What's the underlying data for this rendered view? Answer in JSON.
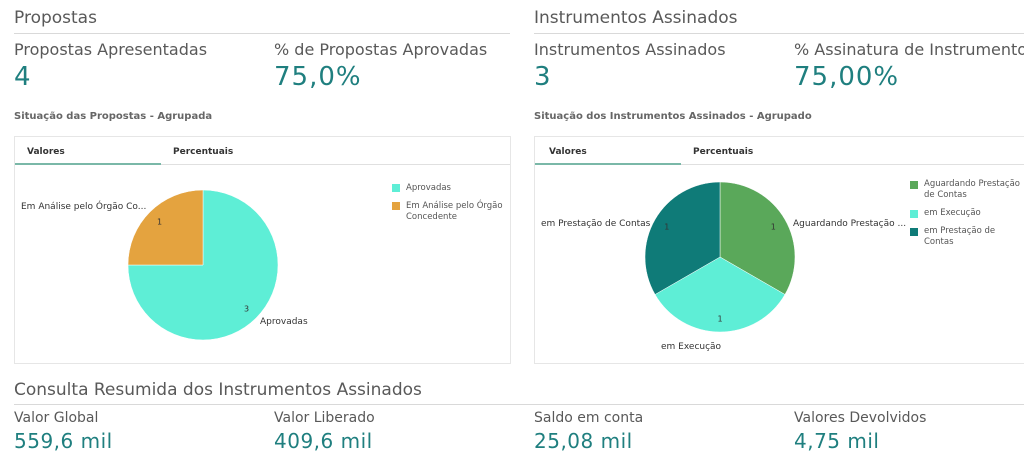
{
  "propostas": {
    "title": "Propostas",
    "kpis": [
      {
        "label": "Propostas Apresentadas",
        "value": "4"
      },
      {
        "label": "% de Propostas Aprovadas",
        "value": "75,0%"
      }
    ],
    "chart_title": "Situação das Propostas - Agrupada",
    "tabs": [
      "Valores",
      "Percentuais"
    ],
    "legend": [
      {
        "label": "Aprovadas",
        "color": "#5eeed6"
      },
      {
        "label": "Em Análise pelo Órgão Concedente",
        "color": "#e4a33f"
      }
    ],
    "slice_labels": {
      "aprovadas": "Aprovadas",
      "analise": "Em Análise pelo Órgão Co..."
    }
  },
  "instrumentos": {
    "title": "Instrumentos Assinados",
    "kpis": [
      {
        "label": "Instrumentos Assinados",
        "value": "3"
      },
      {
        "label": "% Assinatura de Instrumentos",
        "value": "75,00%"
      }
    ],
    "chart_title": "Situação dos Instrumentos Assinados - Agrupado",
    "tabs": [
      "Valores",
      "Percentuais"
    ],
    "legend": [
      {
        "label": "Aguardando Prestação de Contas",
        "color": "#5aa85a"
      },
      {
        "label": "em Execução",
        "color": "#5eeed6"
      },
      {
        "label": "em Prestação de Contas",
        "color": "#0f7b78"
      }
    ],
    "slice_labels": {
      "aguardando": "Aguardando Prestação ...",
      "execucao": "em Execução",
      "prestacao": "em Prestação de Contas"
    }
  },
  "consulta": {
    "title": "Consulta Resumida dos Instrumentos Assinados",
    "kpis": [
      {
        "label": "Valor Global",
        "value": "559,6 mil"
      },
      {
        "label": "Valor Liberado",
        "value": "409,6 mil"
      },
      {
        "label": "Saldo em conta",
        "value": "25,08 mil"
      },
      {
        "label": "Valores Devolvidos",
        "value": "4,75 mil"
      }
    ]
  },
  "chart_data": [
    {
      "type": "pie",
      "title": "Situação das Propostas - Agrupada",
      "categories": [
        "Aprovadas",
        "Em Análise pelo Órgão Concedente"
      ],
      "values": [
        3,
        1
      ],
      "colors": [
        "#5eeed6",
        "#e4a33f"
      ],
      "legend": "right"
    },
    {
      "type": "pie",
      "title": "Situação dos Instrumentos Assinados - Agrupado",
      "categories": [
        "Aguardando Prestação de Contas",
        "em Execução",
        "em Prestação de Contas"
      ],
      "values": [
        1,
        1,
        1
      ],
      "colors": [
        "#5aa85a",
        "#5eeed6",
        "#0f7b78"
      ],
      "legend": "right"
    }
  ]
}
